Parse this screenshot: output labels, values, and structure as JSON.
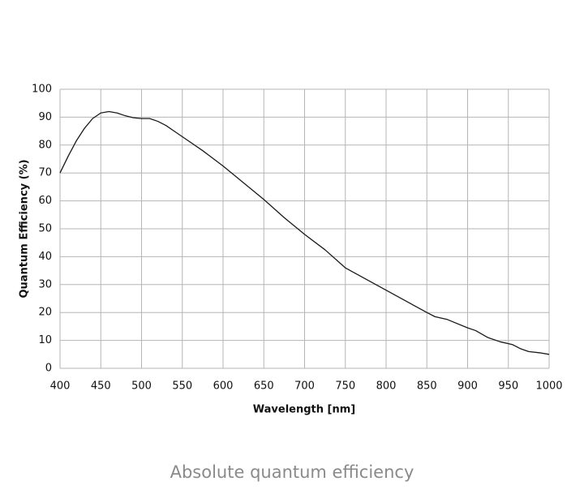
{
  "chart_data": {
    "type": "line",
    "title": "Absolute quantum efficiency",
    "xlabel": "Wavelength [nm]",
    "ylabel": "Quantum Efficiency (%)",
    "x": [
      400,
      410,
      420,
      430,
      440,
      450,
      460,
      470,
      480,
      490,
      500,
      510,
      520,
      530,
      540,
      550,
      575,
      600,
      625,
      650,
      675,
      700,
      725,
      750,
      775,
      800,
      825,
      850,
      860,
      875,
      900,
      910,
      925,
      940,
      955,
      965,
      975,
      990,
      1000
    ],
    "series": [
      {
        "name": "Quantum Efficiency",
        "color": "#1a1a1a",
        "values": [
          70,
          76,
          81.5,
          86,
          89.5,
          91.5,
          92,
          91.5,
          90.5,
          89.8,
          89.5,
          89.5,
          88.5,
          87,
          85,
          83,
          78,
          72.5,
          66.5,
          60.5,
          54,
          48,
          42.5,
          36,
          32,
          28,
          24,
          20,
          18.5,
          17.5,
          14.5,
          13.5,
          11,
          9.5,
          8.5,
          7,
          6,
          5.5,
          5
        ]
      }
    ],
    "xlim": [
      400,
      1000
    ],
    "xticks": [
      400,
      450,
      500,
      550,
      600,
      650,
      700,
      750,
      800,
      850,
      900,
      950,
      1000
    ],
    "ylim": [
      0,
      100
    ],
    "yticks": [
      0,
      10,
      20,
      30,
      40,
      50,
      60,
      70,
      80,
      90,
      100
    ],
    "grid": true
  }
}
